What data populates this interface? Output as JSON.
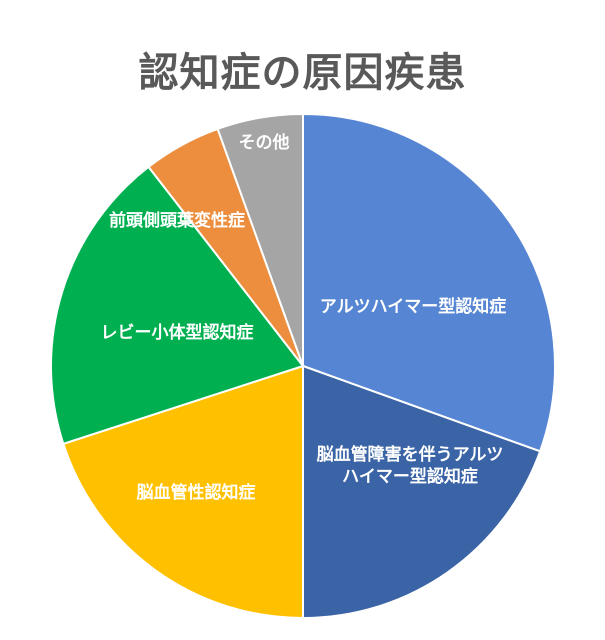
{
  "chart_data": {
    "type": "pie",
    "title": "認知症の原因疾患",
    "start": "12 o'clock",
    "direction": "clockwise",
    "legend": "none (labels inside slices)",
    "slices": [
      {
        "label": "アルツハイマー型認知症",
        "label_lines": [
          "アルツハイマー型認知症"
        ],
        "value": 30.5,
        "color": "#5585D3"
      },
      {
        "label": "脳血管障害を伴うアルツハイマー型認知症",
        "label_lines": [
          "脳血管障害を伴うアルツ",
          "ハイマー型認知症"
        ],
        "value": 19.5,
        "color": "#3A64A5"
      },
      {
        "label": "脳血管性認知症",
        "label_lines": [
          "脳血管性認知症"
        ],
        "value": 20.0,
        "color": "#FFC000"
      },
      {
        "label": "レビー小体型認知症",
        "label_lines": [
          "レビー小体型認知症"
        ],
        "value": 19.5,
        "color": "#00B050"
      },
      {
        "label": "前頭側頭葉変性症",
        "label_lines": [
          "前頭側頭葉変性症"
        ],
        "value": 5.0,
        "color": "#ED8E3E"
      },
      {
        "label": "その他",
        "label_lines": [
          "その他"
        ],
        "value": 5.5,
        "color": "#A5A5A5"
      }
    ]
  }
}
